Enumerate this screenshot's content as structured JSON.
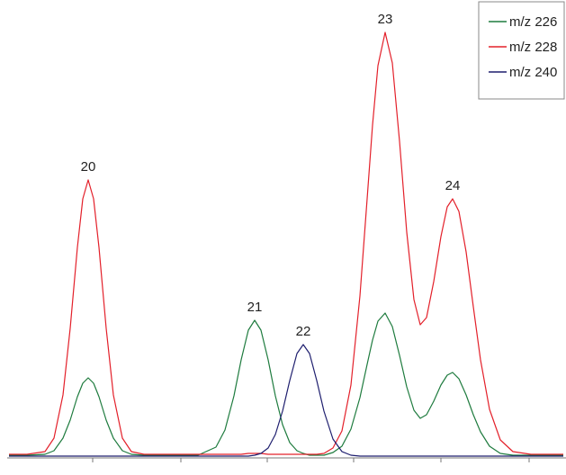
{
  "chart_data": {
    "type": "line",
    "x": [
      10,
      30,
      50,
      60,
      70,
      78,
      86,
      92,
      98,
      104,
      110,
      118,
      126,
      136,
      146,
      160,
      180,
      200,
      220,
      240,
      250,
      260,
      268,
      276,
      283,
      290,
      298,
      306,
      314,
      322,
      330,
      337,
      344,
      352,
      360,
      370,
      380,
      390,
      400,
      408,
      414,
      420,
      428,
      436,
      444,
      452,
      460,
      467,
      474,
      482,
      490,
      497,
      503,
      510,
      518,
      526,
      534,
      544,
      556,
      570,
      590,
      610,
      626
    ],
    "series": [
      {
        "name": "m/z 226",
        "color": "#1e7b3e",
        "values": [
          2,
          2,
          3,
          7,
          21,
          41,
          67,
          82,
          88,
          82,
          67,
          41,
          21,
          7,
          3,
          2,
          2,
          2,
          2,
          11,
          30,
          68,
          108,
          141,
          152,
          141,
          108,
          68,
          36,
          16,
          7,
          4,
          2,
          2,
          2,
          5,
          12,
          31,
          66,
          103,
          130,
          151,
          160,
          145,
          113,
          78,
          52,
          43,
          47,
          62,
          80,
          91,
          94,
          87,
          69,
          47,
          28,
          12,
          4,
          2,
          2,
          2,
          2
        ]
      },
      {
        "name": "m/z 228",
        "color": "#e3202a",
        "values": [
          3,
          3,
          6,
          21,
          69,
          143,
          233,
          287,
          308,
          287,
          233,
          143,
          69,
          21,
          6,
          3,
          3,
          3,
          3,
          3,
          3,
          3,
          3,
          4,
          4,
          4,
          3,
          3,
          3,
          3,
          3,
          3,
          3,
          3,
          4,
          10,
          29,
          80,
          179,
          287,
          369,
          435,
          472,
          438,
          351,
          250,
          175,
          147,
          155,
          195,
          245,
          278,
          287,
          273,
          228,
          167,
          108,
          53,
          19,
          6,
          3,
          3,
          3
        ]
      },
      {
        "name": "m/z 240",
        "color": "#1e1e6e",
        "values": [
          1,
          1,
          1,
          1,
          1,
          1,
          1,
          1,
          1,
          1,
          1,
          1,
          1,
          1,
          1,
          1,
          1,
          1,
          1,
          1,
          1,
          1,
          1,
          1,
          2,
          4,
          10,
          25,
          51,
          85,
          115,
          125,
          115,
          85,
          51,
          20,
          6,
          2,
          1,
          1,
          1,
          1,
          1,
          1,
          1,
          1,
          1,
          1,
          1,
          1,
          1,
          1,
          1,
          1,
          1,
          1,
          1,
          1,
          1,
          1,
          1,
          1,
          1
        ]
      }
    ],
    "peak_labels": [
      {
        "text": "20",
        "x": 98
      },
      {
        "text": "21",
        "x": 283
      },
      {
        "text": "22",
        "x": 337
      },
      {
        "text": "23",
        "x": 428
      },
      {
        "text": "24",
        "x": 503
      }
    ],
    "xlim": [
      0,
      629
    ],
    "ylim": [
      0,
      500
    ],
    "xticks": [
      103,
      201,
      297,
      393,
      490,
      588
    ],
    "legend": "top-right"
  }
}
